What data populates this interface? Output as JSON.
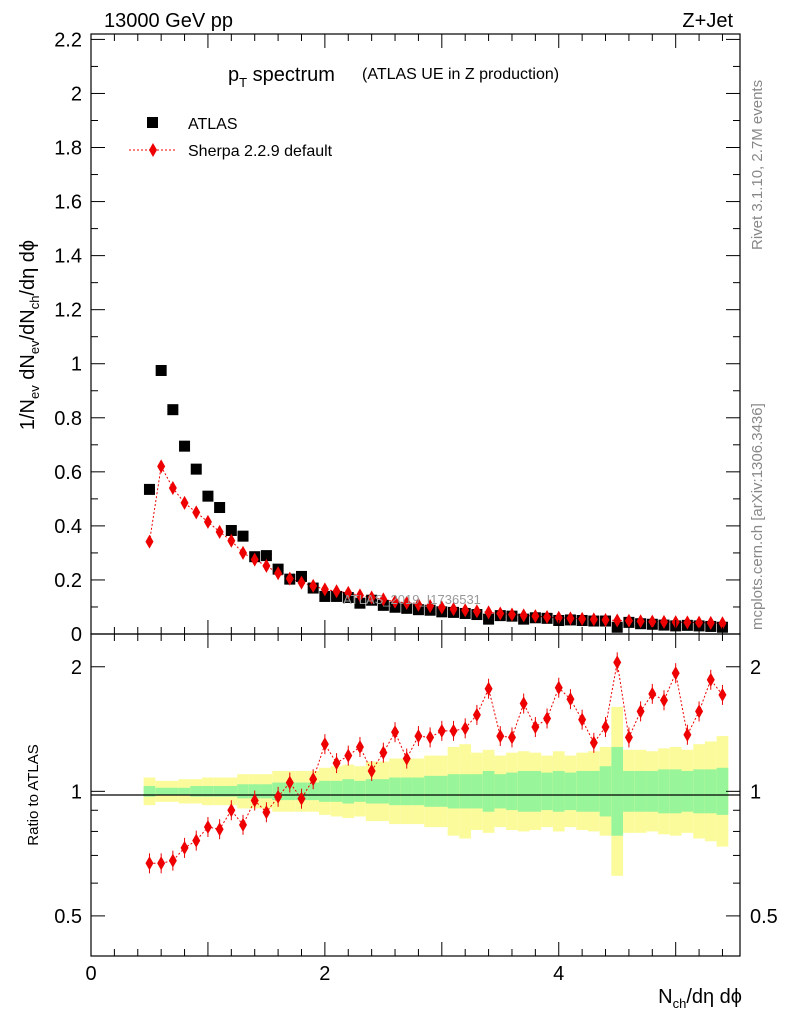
{
  "header": {
    "energy": "13000 GeV pp",
    "process": "Z+Jet"
  },
  "side_text": {
    "rivet": "Rivet 3.1.10,  2.7M events",
    "mcplots": "mcplots.cern.ch [arXiv:1306.3436]"
  },
  "title": {
    "main_p": "p",
    "main_sub": "T",
    "main_rest": " spectrum",
    "analysis": "(ATLAS UE in Z production)"
  },
  "watermark": "ATLAS_2019_I1736531",
  "legend": {
    "atlas": "ATLAS",
    "sherpa": "Sherpa 2.2.9 default"
  },
  "labels": {
    "ylabel_top": "1/N_ev dN_ev/dN_ch/dη dϕ",
    "ylabel_ratio": "Ratio to ATLAS",
    "xlabel": "N_ch/dη dϕ"
  },
  "colors": {
    "data": "#000000",
    "mc": "#ee0000",
    "band_green": "#99f599",
    "band_yellow": "#fbfb9c"
  },
  "chart_data": [
    {
      "type": "scatter",
      "panel": "main",
      "x": [
        0.5,
        0.6,
        0.7,
        0.8,
        0.9,
        1.0,
        1.1,
        1.2,
        1.3,
        1.4,
        1.5,
        1.6,
        1.7,
        1.8,
        1.9,
        2.0,
        2.1,
        2.2,
        2.3,
        2.4,
        2.5,
        2.6,
        2.7,
        2.8,
        2.9,
        3.0,
        3.1,
        3.2,
        3.3,
        3.4,
        3.5,
        3.6,
        3.7,
        3.8,
        3.9,
        4.0,
        4.1,
        4.2,
        4.3,
        4.4,
        4.5,
        4.6,
        4.7,
        4.8,
        4.9,
        5.0,
        5.1,
        5.2,
        5.3,
        5.4
      ],
      "series": [
        {
          "name": "ATLAS",
          "values": [
            0.535,
            0.975,
            0.83,
            0.695,
            0.61,
            0.51,
            0.468,
            0.383,
            0.362,
            0.286,
            0.29,
            0.24,
            0.203,
            0.213,
            0.17,
            0.139,
            0.139,
            0.135,
            0.114,
            0.125,
            0.106,
            0.099,
            0.095,
            0.09,
            0.088,
            0.082,
            0.08,
            0.076,
            0.072,
            0.055,
            0.068,
            0.066,
            0.055,
            0.06,
            0.058,
            0.05,
            0.052,
            0.05,
            0.048,
            0.048,
            0.025,
            0.043,
            0.038,
            0.036,
            0.033,
            0.03,
            0.032,
            0.03,
            0.028,
            0.025
          ]
        },
        {
          "name": "Sherpa 2.2.9 default",
          "values": [
            0.342,
            0.62,
            0.54,
            0.485,
            0.45,
            0.415,
            0.378,
            0.345,
            0.3,
            0.275,
            0.252,
            0.225,
            0.205,
            0.19,
            0.178,
            0.165,
            0.158,
            0.152,
            0.143,
            0.135,
            0.128,
            0.12,
            0.115,
            0.108,
            0.103,
            0.098,
            0.092,
            0.088,
            0.084,
            0.08,
            0.076,
            0.072,
            0.069,
            0.066,
            0.063,
            0.06,
            0.058,
            0.056,
            0.054,
            0.052,
            0.05,
            0.049,
            0.047,
            0.046,
            0.045,
            0.044,
            0.043,
            0.042,
            0.041,
            0.04
          ]
        }
      ],
      "title": "p_T spectrum (ATLAS UE in Z production)",
      "xlabel": "N_ch/dη dϕ",
      "ylabel": "1/N_ev dN_ev/dN_ch/dη dϕ",
      "xlim": [
        0,
        5.55
      ],
      "ylim": [
        0,
        2.22
      ],
      "yticks": [
        "0",
        "0.2",
        "0.4",
        "0.6",
        "0.8",
        "1",
        "1.2",
        "1.4",
        "1.6",
        "1.8",
        "2",
        "2.2"
      ]
    },
    {
      "type": "scatter",
      "panel": "ratio",
      "x": [
        0.5,
        0.6,
        0.7,
        0.8,
        0.9,
        1.0,
        1.1,
        1.2,
        1.3,
        1.4,
        1.5,
        1.6,
        1.7,
        1.8,
        1.9,
        2.0,
        2.1,
        2.2,
        2.3,
        2.4,
        2.5,
        2.6,
        2.7,
        2.8,
        2.9,
        3.0,
        3.1,
        3.2,
        3.3,
        3.4,
        3.5,
        3.6,
        3.7,
        3.8,
        3.9,
        4.0,
        4.1,
        4.2,
        4.3,
        4.4,
        4.5,
        4.6,
        4.7,
        4.8,
        4.9,
        5.0,
        5.1,
        5.2,
        5.3,
        5.4
      ],
      "series": [
        {
          "name": "Sherpa 2.2.9 default / ATLAS",
          "values": [
            0.67,
            0.67,
            0.68,
            0.73,
            0.76,
            0.82,
            0.81,
            0.9,
            0.83,
            0.95,
            0.89,
            0.97,
            1.05,
            0.96,
            1.07,
            1.3,
            1.17,
            1.22,
            1.28,
            1.12,
            1.24,
            1.39,
            1.2,
            1.36,
            1.35,
            1.4,
            1.4,
            1.42,
            1.53,
            1.77,
            1.36,
            1.35,
            1.63,
            1.43,
            1.5,
            1.78,
            1.67,
            1.49,
            1.31,
            1.43,
            2.05,
            1.35,
            1.56,
            1.72,
            1.66,
            1.93,
            1.37,
            1.56,
            1.86,
            1.71
          ]
        },
        {
          "name": "Green band upper",
          "values": [
            1.03,
            1.02,
            1.02,
            1.02,
            1.03,
            1.03,
            1.03,
            1.03,
            1.04,
            1.04,
            1.04,
            1.05,
            1.05,
            1.05,
            1.05,
            1.06,
            1.06,
            1.07,
            1.06,
            1.07,
            1.07,
            1.08,
            1.08,
            1.08,
            1.09,
            1.09,
            1.1,
            1.1,
            1.1,
            1.12,
            1.1,
            1.11,
            1.12,
            1.12,
            1.11,
            1.12,
            1.11,
            1.12,
            1.12,
            1.15,
            1.28,
            1.12,
            1.12,
            1.12,
            1.13,
            1.13,
            1.12,
            1.13,
            1.13,
            1.14
          ]
        },
        {
          "name": "Yellow band upper",
          "values": [
            1.08,
            1.06,
            1.06,
            1.07,
            1.07,
            1.08,
            1.08,
            1.08,
            1.1,
            1.1,
            1.1,
            1.12,
            1.12,
            1.12,
            1.12,
            1.14,
            1.15,
            1.16,
            1.15,
            1.18,
            1.18,
            1.2,
            1.2,
            1.2,
            1.22,
            1.22,
            1.28,
            1.3,
            1.24,
            1.26,
            1.22,
            1.24,
            1.25,
            1.24,
            1.22,
            1.25,
            1.22,
            1.24,
            1.25,
            1.28,
            1.6,
            1.26,
            1.26,
            1.25,
            1.27,
            1.28,
            1.26,
            1.3,
            1.32,
            1.36
          ]
        }
      ],
      "ylabel": "Ratio to ATLAS",
      "xlim": [
        0,
        5.55
      ],
      "ylim": [
        0.4,
        2.4
      ],
      "yscale": "log",
      "yticks": [
        "0.5",
        "1",
        "2"
      ],
      "xticks": [
        "0",
        "2",
        "4"
      ]
    }
  ]
}
